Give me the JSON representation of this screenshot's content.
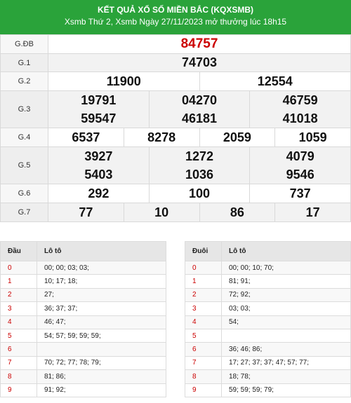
{
  "header": {
    "title": "KẾT QUẢ XỔ SỐ MIỀN BẮC (KQXSMB)",
    "subtitle": "Xsmb Thứ 2, Xsmb Ngày 27/11/2023 mở thưởng lúc 18h15"
  },
  "prizes": {
    "gdb": {
      "label": "G.ĐB",
      "numbers": [
        "84757"
      ]
    },
    "g1": {
      "label": "G.1",
      "numbers": [
        "74703"
      ]
    },
    "g2": {
      "label": "G.2",
      "numbers": [
        "11900",
        "12554"
      ]
    },
    "g3": {
      "label": "G.3",
      "numbers": [
        "19791",
        "04270",
        "46759",
        "59547",
        "46181",
        "41018"
      ]
    },
    "g4": {
      "label": "G.4",
      "numbers": [
        "6537",
        "8278",
        "2059",
        "1059"
      ]
    },
    "g5": {
      "label": "G.5",
      "numbers": [
        "3927",
        "1272",
        "4079",
        "5403",
        "1036",
        "9546"
      ]
    },
    "g6": {
      "label": "G.6",
      "numbers": [
        "292",
        "100",
        "737"
      ]
    },
    "g7": {
      "label": "G.7",
      "numbers": [
        "77",
        "10",
        "86",
        "17"
      ]
    }
  },
  "loto_head": {
    "col1": "Đầu",
    "col2": "Lô tô",
    "rows": [
      {
        "key": "0",
        "value": "00; 00; 03; 03;"
      },
      {
        "key": "1",
        "value": "10; 17; 18;"
      },
      {
        "key": "2",
        "value": "27;"
      },
      {
        "key": "3",
        "value": "36; 37; 37;"
      },
      {
        "key": "4",
        "value": "46; 47;"
      },
      {
        "key": "5",
        "value": "54; 57; 59; 59; 59;"
      },
      {
        "key": "6",
        "value": ""
      },
      {
        "key": "7",
        "value": "70; 72; 77; 78; 79;"
      },
      {
        "key": "8",
        "value": "81; 86;"
      },
      {
        "key": "9",
        "value": "91; 92;"
      }
    ]
  },
  "loto_tail": {
    "col1": "Đuôi",
    "col2": "Lô tô",
    "rows": [
      {
        "key": "0",
        "value": "00; 00; 10; 70;"
      },
      {
        "key": "1",
        "value": "81; 91;"
      },
      {
        "key": "2",
        "value": "72; 92;"
      },
      {
        "key": "3",
        "value": "03; 03;"
      },
      {
        "key": "4",
        "value": "54;"
      },
      {
        "key": "5",
        "value": ""
      },
      {
        "key": "6",
        "value": "36; 46; 86;"
      },
      {
        "key": "7",
        "value": "17; 27; 37; 37; 47; 57; 77;"
      },
      {
        "key": "8",
        "value": "18; 78;"
      },
      {
        "key": "9",
        "value": "59; 59; 59; 79;"
      }
    ]
  },
  "colors": {
    "header_bg": "#2aa33a",
    "special_prize": "#cc0000",
    "loto_key": "#cc0000"
  }
}
